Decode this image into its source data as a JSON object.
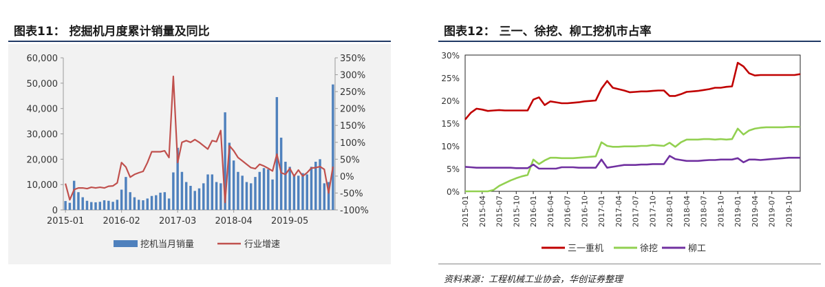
{
  "left": {
    "title": "图表11： 挖掘机月度累计销量及同比",
    "chart_data": {
      "type": "bar",
      "x": [
        "2015-01",
        "2015-02",
        "2015-03",
        "2015-04",
        "2015-05",
        "2015-06",
        "2015-07",
        "2015-08",
        "2015-09",
        "2015-10",
        "2015-11",
        "2015-12",
        "2016-01",
        "2016-02",
        "2016-03",
        "2016-04",
        "2016-05",
        "2016-06",
        "2016-07",
        "2016-08",
        "2016-09",
        "2016-10",
        "2016-11",
        "2016-12",
        "2017-01",
        "2017-02",
        "2017-03",
        "2017-04",
        "2017-05",
        "2017-06",
        "2017-07",
        "2017-08",
        "2017-09",
        "2017-10",
        "2017-11",
        "2017-12",
        "2018-01",
        "2018-02",
        "2018-03",
        "2018-04",
        "2018-05",
        "2018-06",
        "2018-07",
        "2018-08",
        "2018-09",
        "2018-10",
        "2018-11",
        "2018-12",
        "2019-01",
        "2019-02",
        "2019-03",
        "2019-04",
        "2019-05",
        "2019-06",
        "2019-07",
        "2019-08",
        "2019-09",
        "2019-10",
        "2019-11",
        "2019-12",
        "2020-01",
        "2020-02",
        "2020-03"
      ],
      "tick_labels": [
        "2015-01",
        "2016-02",
        "2017-03",
        "2018-04",
        "2019-05"
      ],
      "series": [
        {
          "name": "挖机当月销量",
          "kind": "bar",
          "axis": "left",
          "color": "#4f81bd",
          "values": [
            3500,
            2800,
            11500,
            7000,
            5000,
            3600,
            3100,
            3000,
            3200,
            3800,
            3600,
            3200,
            4000,
            8000,
            13000,
            7000,
            5000,
            4000,
            3800,
            4500,
            5500,
            5800,
            6800,
            7000,
            4500,
            14800,
            24500,
            15000,
            11000,
            9500,
            7500,
            8500,
            10500,
            14000,
            14000,
            11000,
            10500,
            38500,
            26500,
            19500,
            15000,
            13500,
            11000,
            10500,
            13000,
            15000,
            16500,
            16000,
            12000,
            44500,
            28500,
            19000,
            17000,
            14000,
            13500,
            14500,
            14000,
            17000,
            19000,
            20000,
            10500,
            11000,
            49500
          ]
        },
        {
          "name": "行业增速",
          "kind": "line",
          "axis": "right",
          "color": "#c0504d",
          "values": [
            -22,
            -70,
            -40,
            -35,
            -35,
            -37,
            -33,
            -35,
            -33,
            -35,
            -30,
            -29,
            -20,
            40,
            27,
            -3,
            5,
            10,
            14,
            40,
            72,
            72,
            72,
            75,
            55,
            295,
            40,
            100,
            105,
            100,
            108,
            100,
            90,
            80,
            105,
            102,
            135,
            -78,
            90,
            75,
            55,
            45,
            35,
            25,
            22,
            35,
            30,
            23,
            15,
            65,
            10,
            5,
            23,
            0,
            18,
            0,
            10,
            24,
            25,
            28,
            20,
            -50,
            28
          ]
        }
      ],
      "yleft": {
        "min": 0,
        "max": 60000,
        "ticks": [
          "0",
          "10,000",
          "20,000",
          "30,000",
          "40,000",
          "50,000",
          "60,000"
        ]
      },
      "yright": {
        "min": -100,
        "max": 350,
        "ticks": [
          "-100%",
          "-50%",
          "0%",
          "50%",
          "100%",
          "150%",
          "200%",
          "250%",
          "300%",
          "350%"
        ]
      },
      "legend_position": "bottom"
    }
  },
  "right": {
    "title": "图表12： 三一、徐挖、柳工挖机市占率",
    "chart_data": {
      "type": "line",
      "x": [
        "2015-01",
        "2015-02",
        "2015-03",
        "2015-04",
        "2015-05",
        "2015-06",
        "2015-07",
        "2015-08",
        "2015-09",
        "2015-10",
        "2015-11",
        "2015-12",
        "2016-01",
        "2016-02",
        "2016-03",
        "2016-04",
        "2016-05",
        "2016-06",
        "2016-07",
        "2016-08",
        "2016-09",
        "2016-10",
        "2016-11",
        "2016-12",
        "2017-01",
        "2017-02",
        "2017-03",
        "2017-04",
        "2017-05",
        "2017-06",
        "2017-07",
        "2017-08",
        "2017-09",
        "2017-10",
        "2017-11",
        "2017-12",
        "2018-01",
        "2018-02",
        "2018-03",
        "2018-04",
        "2018-05",
        "2018-06",
        "2018-07",
        "2018-08",
        "2018-09",
        "2018-10",
        "2018-11",
        "2018-12",
        "2019-01",
        "2019-02",
        "2019-03",
        "2019-04",
        "2019-05",
        "2019-06",
        "2019-07",
        "2019-08",
        "2019-09",
        "2019-10",
        "2019-11",
        "2019-12"
      ],
      "tick_labels": [
        "2015-01",
        "2015-04",
        "2015-07",
        "2015-10",
        "2016-01",
        "2016-04",
        "2016-07",
        "2016-10",
        "2017-01",
        "2017-04",
        "2017-07",
        "2017-10",
        "2018-01",
        "2018-04",
        "2018-07",
        "2018-10",
        "2019-01",
        "2019-04",
        "2019-07",
        "2019-10"
      ],
      "series": [
        {
          "name": "三一重机",
          "color": "#c00000",
          "values": [
            15.8,
            17.3,
            18.2,
            18.0,
            17.7,
            17.8,
            17.9,
            17.8,
            17.8,
            17.8,
            17.8,
            17.8,
            20.2,
            20.7,
            19.0,
            19.8,
            19.6,
            19.4,
            19.4,
            19.5,
            19.6,
            19.8,
            19.9,
            20.0,
            22.6,
            24.3,
            22.8,
            22.5,
            22.2,
            21.8,
            21.9,
            22.0,
            22.0,
            22.1,
            22.2,
            22.2,
            21.0,
            21.0,
            21.4,
            21.9,
            22.0,
            22.1,
            22.3,
            22.5,
            22.8,
            22.8,
            23.0,
            23.1,
            28.3,
            27.5,
            26.0,
            25.5,
            25.6,
            25.6,
            25.6,
            25.6,
            25.6,
            25.6,
            25.6,
            25.8
          ]
        },
        {
          "name": "徐挖",
          "color": "#92d050",
          "values": [
            0,
            0,
            0,
            0,
            0,
            0.3,
            1.2,
            1.8,
            2.4,
            2.9,
            3.3,
            3.6,
            7.0,
            6.0,
            6.8,
            7.4,
            7.4,
            7.3,
            7.3,
            7.3,
            7.4,
            7.5,
            7.6,
            7.7,
            10.8,
            10.0,
            9.8,
            9.8,
            9.9,
            9.9,
            9.9,
            10.0,
            10.0,
            10.2,
            10.1,
            10.0,
            10.7,
            9.8,
            10.8,
            11.4,
            11.4,
            11.4,
            11.5,
            11.5,
            11.4,
            11.5,
            11.4,
            11.5,
            13.8,
            12.5,
            13.4,
            13.8,
            14.0,
            14.1,
            14.1,
            14.1,
            14.1,
            14.2,
            14.2,
            14.2
          ]
        },
        {
          "name": "柳工",
          "color": "#7030a0",
          "values": [
            5.4,
            5.3,
            5.2,
            5.2,
            5.2,
            5.2,
            5.2,
            5.2,
            5.2,
            5.1,
            5.1,
            5.1,
            5.9,
            5.0,
            5.0,
            5.0,
            5.0,
            5.3,
            5.3,
            5.3,
            5.2,
            5.2,
            5.2,
            5.2,
            7.0,
            5.2,
            5.4,
            5.6,
            5.8,
            5.8,
            5.8,
            5.9,
            5.9,
            6.0,
            6.0,
            6.0,
            7.8,
            7.1,
            6.9,
            6.7,
            6.7,
            6.7,
            6.8,
            6.9,
            6.9,
            7.0,
            7.0,
            7.0,
            7.3,
            6.4,
            7.0,
            7.0,
            6.9,
            7.0,
            7.1,
            7.2,
            7.3,
            7.4,
            7.4,
            7.4
          ]
        }
      ],
      "yaxis": {
        "min": 0,
        "max": 30,
        "ticks": [
          "0%",
          "5%",
          "10%",
          "15%",
          "20%",
          "25%",
          "30%"
        ]
      },
      "legend_position": "bottom"
    }
  },
  "source": "资料来源：工程机械工业协会，华创证券整理"
}
